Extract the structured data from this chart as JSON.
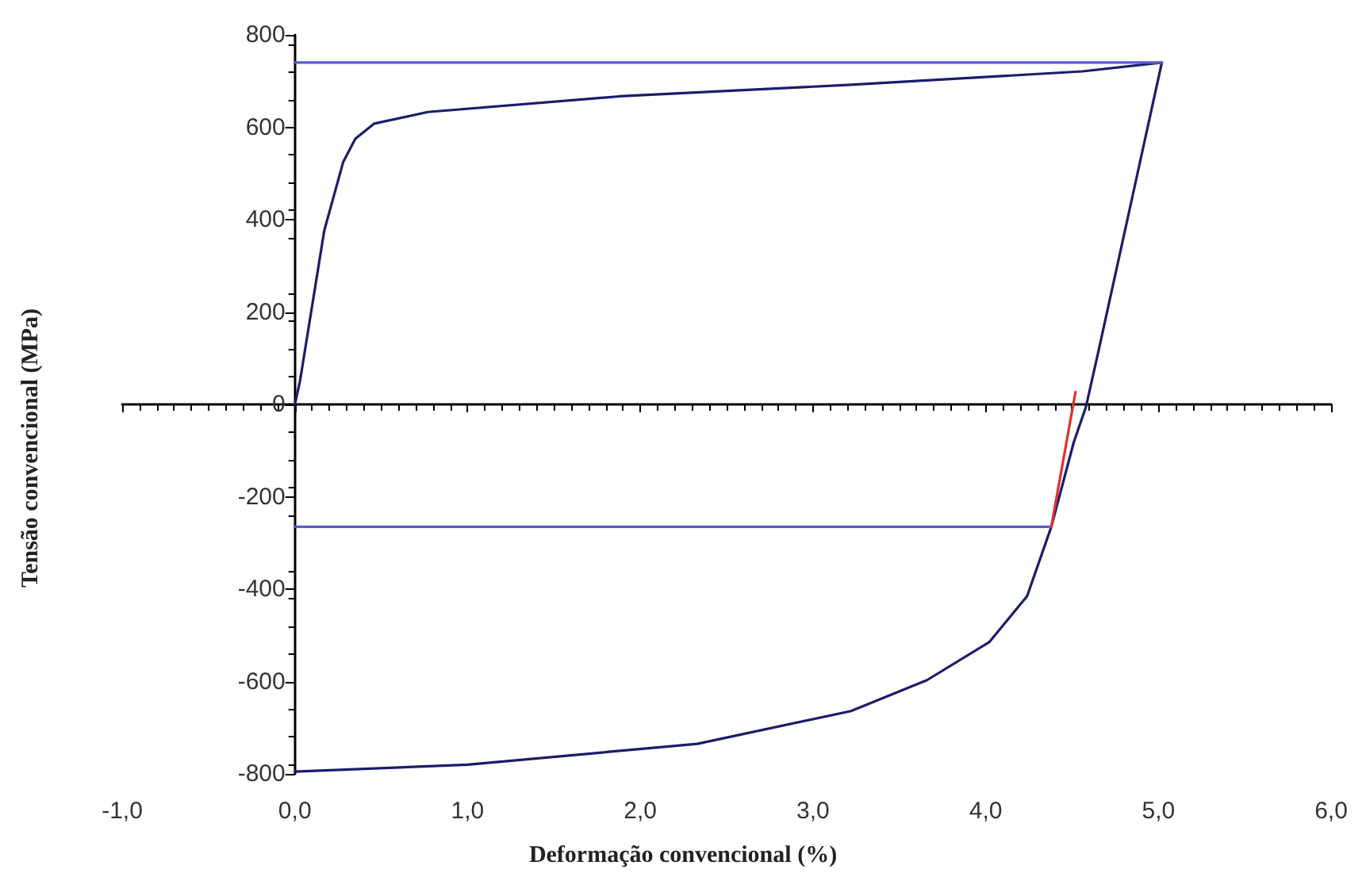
{
  "chart_data": {
    "type": "line",
    "xlabel": "Deformação convencional (%)",
    "ylabel": "Tensão convencional (MPa)",
    "xlim": [
      -1,
      6
    ],
    "xticks": [
      {
        "value": -1,
        "label": "-1,0"
      },
      {
        "value": 0,
        "label": "0,0"
      },
      {
        "value": 1,
        "label": "1,0"
      },
      {
        "value": 2,
        "label": "2,0"
      },
      {
        "value": 3,
        "label": "3,0"
      },
      {
        "value": 4,
        "label": "4,0"
      },
      {
        "value": 5,
        "label": "5,0"
      },
      {
        "value": 6,
        "label": "6,0"
      }
    ],
    "ylim": [
      -800,
      800
    ],
    "yticks": [
      -800,
      -600,
      -400,
      -200,
      0,
      200,
      400,
      600,
      800
    ],
    "marker": "none",
    "series": [
      {
        "color": "#1c1c6a",
        "line_style": "solid",
        "x": [
          0,
          0.03,
          0.17,
          0.28,
          0.35,
          0.46,
          0.77,
          1.88,
          3.22,
          4.56,
          5.02,
          4.65,
          4.58,
          4.51,
          4.38,
          4.24,
          4.02,
          3.66,
          3.22,
          2.33,
          1.0,
          0
        ],
        "values": [
          0,
          51,
          376,
          525,
          575,
          608,
          633,
          667,
          692,
          721,
          740,
          110,
          -6,
          -82,
          -265,
          -415,
          -515,
          -597,
          -664,
          -735,
          -780,
          -795
        ]
      },
      {
        "color": "#5a5ad0",
        "line_style": "solid",
        "x": [
          0,
          5.02
        ],
        "values": [
          740,
          740
        ]
      },
      {
        "color": "#5a5ad0",
        "line_style": "solid",
        "x": [
          0,
          4.38
        ],
        "values": [
          -265,
          -265
        ]
      },
      {
        "color": "#e03030",
        "line_style": "solid",
        "x": [
          4.38,
          4.52
        ],
        "values": [
          -265,
          27
        ]
      }
    ]
  }
}
